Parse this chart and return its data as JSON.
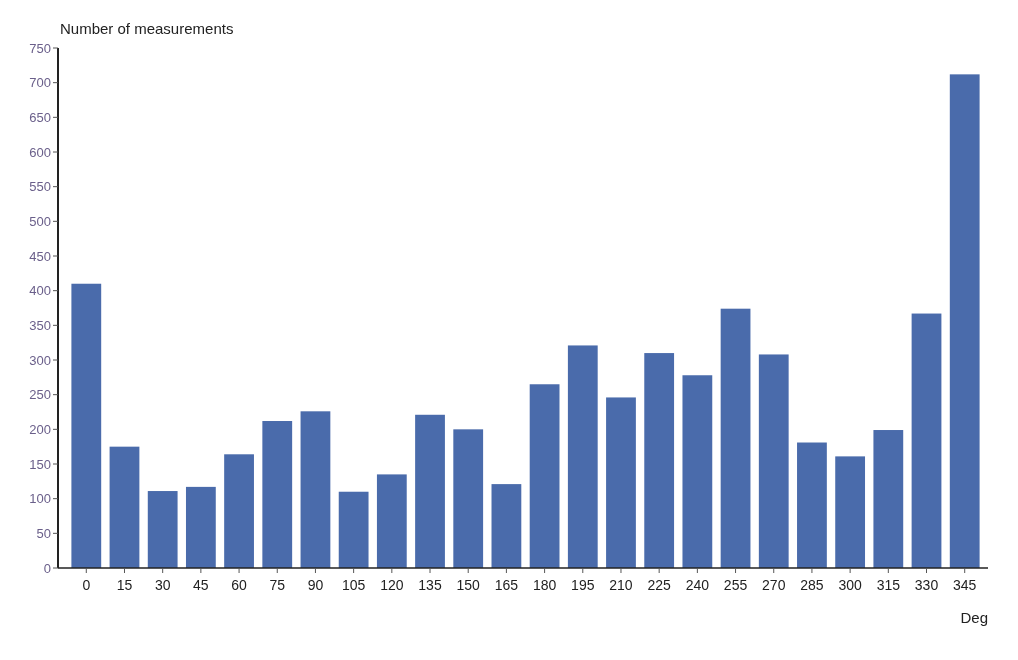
{
  "chart_data": {
    "type": "bar",
    "ylabel": "Number of measurements",
    "xlabel": "Deg",
    "categories": [
      "0",
      "15",
      "30",
      "45",
      "60",
      "75",
      "90",
      "105",
      "120",
      "135",
      "150",
      "165",
      "180",
      "195",
      "210",
      "225",
      "240",
      "255",
      "270",
      "285",
      "300",
      "315",
      "330",
      "345"
    ],
    "values": [
      410,
      175,
      111,
      117,
      164,
      212,
      226,
      110,
      135,
      221,
      200,
      121,
      265,
      321,
      246,
      310,
      278,
      374,
      308,
      181,
      161,
      199,
      367,
      712
    ],
    "color": "#4a6bab",
    "ylim": [
      0,
      750
    ],
    "yticks": [
      0,
      50,
      100,
      150,
      200,
      250,
      300,
      350,
      400,
      450,
      500,
      550,
      600,
      650,
      700,
      750
    ],
    "grid": false
  }
}
